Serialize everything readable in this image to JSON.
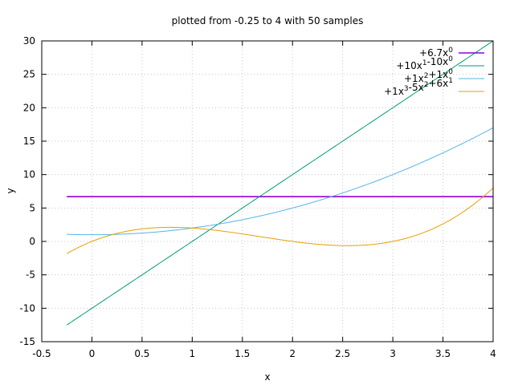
{
  "chart_data": {
    "type": "line",
    "title": "plotted from -0.25 to 4 with 50 samples",
    "xlabel": "x",
    "ylabel": "y",
    "xlim": [
      -0.5,
      4
    ],
    "ylim": [
      -15,
      30
    ],
    "x_ticks": [
      -0.5,
      0,
      0.5,
      1,
      1.5,
      2,
      2.5,
      3,
      3.5,
      4
    ],
    "x_tick_labels": [
      "-0.5",
      "0",
      "0.5",
      "1",
      "1.5",
      "2",
      "2.5",
      "3",
      "3.5",
      "4"
    ],
    "y_ticks": [
      -15,
      -10,
      -5,
      0,
      5,
      10,
      15,
      20,
      25,
      30
    ],
    "y_tick_labels": [
      "-15",
      "-10",
      "-5",
      "0",
      "5",
      "10",
      "15",
      "20",
      "25",
      "30"
    ],
    "grid": true,
    "legend_position": "top-right",
    "x_range_sampled": [
      -0.25,
      4
    ],
    "samples": 50,
    "series": [
      {
        "name": "+6.7x0",
        "legend_parts": [
          {
            "t": "+6.7x"
          },
          {
            "t": "0",
            "sup": true
          }
        ],
        "color": "#9400d3",
        "coefficients": [
          6.7
        ],
        "points": [
          [
            -0.25,
            6.7
          ],
          [
            0.5,
            6.7
          ],
          [
            1,
            6.7
          ],
          [
            2,
            6.7
          ],
          [
            3,
            6.7
          ],
          [
            4,
            6.7
          ]
        ]
      },
      {
        "name": "+10x1-10x0",
        "legend_parts": [
          {
            "t": "+10x"
          },
          {
            "t": "1",
            "sup": true
          },
          {
            "t": "-10x"
          },
          {
            "t": "0",
            "sup": true
          }
        ],
        "color": "#009e73",
        "coefficients": [
          -10,
          10
        ],
        "points": [
          [
            -0.25,
            -12.5
          ],
          [
            0.5,
            -5
          ],
          [
            1,
            0
          ],
          [
            2,
            10
          ],
          [
            3,
            20
          ],
          [
            4,
            30
          ]
        ]
      },
      {
        "name": "+1x2+1x0",
        "legend_parts": [
          {
            "t": "+1x"
          },
          {
            "t": "2",
            "sup": true
          },
          {
            "t": "+1x"
          },
          {
            "t": "0",
            "sup": true
          }
        ],
        "color": "#56b4e9",
        "coefficients": [
          1,
          0,
          1
        ],
        "points": [
          [
            -0.25,
            1.06
          ],
          [
            0,
            1
          ],
          [
            1,
            2
          ],
          [
            2,
            5
          ],
          [
            3,
            10
          ],
          [
            4,
            17
          ]
        ]
      },
      {
        "name": "+1x3-5x2+6x1",
        "legend_parts": [
          {
            "t": "+1x"
          },
          {
            "t": "3",
            "sup": true
          },
          {
            "t": "-5x"
          },
          {
            "t": "2",
            "sup": true
          },
          {
            "t": "+6x"
          },
          {
            "t": "1",
            "sup": true
          }
        ],
        "color": "#e69f00",
        "coefficients": [
          0,
          6,
          -5,
          1
        ],
        "points": [
          [
            -0.25,
            -1.83
          ],
          [
            0,
            0
          ],
          [
            0.8,
            2.11
          ],
          [
            2,
            0
          ],
          [
            2.5,
            -0.63
          ],
          [
            3,
            0
          ],
          [
            4,
            8
          ]
        ]
      }
    ]
  }
}
